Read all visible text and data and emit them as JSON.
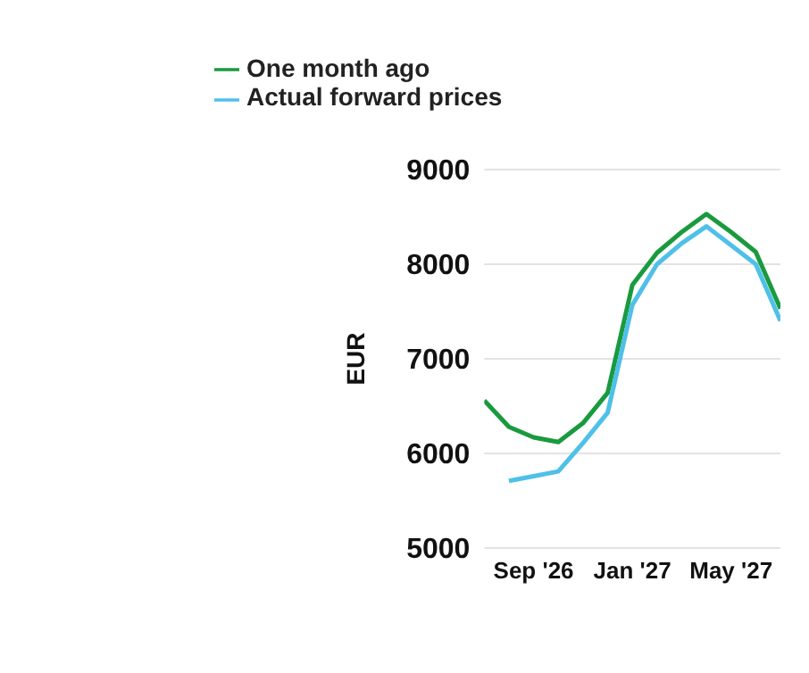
{
  "chart_data": {
    "type": "line",
    "ylabel": "EUR",
    "x": [
      "2026-07",
      "2026-08",
      "2026-09",
      "2026-10",
      "2026-11",
      "2026-12",
      "2027-01",
      "2027-02",
      "2027-03",
      "2027-04",
      "2027-05",
      "2027-06",
      "2027-07"
    ],
    "series": [
      {
        "name": "One month ago",
        "color": "#1a9a3e",
        "values": [
          6560,
          6280,
          6170,
          6120,
          6320,
          6640,
          7780,
          8120,
          8340,
          8530,
          8340,
          8130,
          7530
        ]
      },
      {
        "name": "Actual forward prices",
        "color": "#4fc0e8",
        "values": [
          null,
          5710,
          5760,
          5810,
          6110,
          6430,
          7570,
          8000,
          8220,
          8400,
          8200,
          8000,
          7400
        ]
      }
    ],
    "xlim": [
      "2026-07",
      "2027-07"
    ],
    "xticks": [
      {
        "value": "2026-09",
        "label": "Sep '26"
      },
      {
        "value": "2027-01",
        "label": "Jan '27"
      },
      {
        "value": "2027-05",
        "label": "May '27"
      }
    ],
    "ylim": [
      5000,
      9000
    ],
    "yticks": [
      5000,
      6000,
      7000,
      8000,
      9000
    ],
    "grid": "y",
    "legend": "top left",
    "marker": "none",
    "line_style": "solid"
  }
}
